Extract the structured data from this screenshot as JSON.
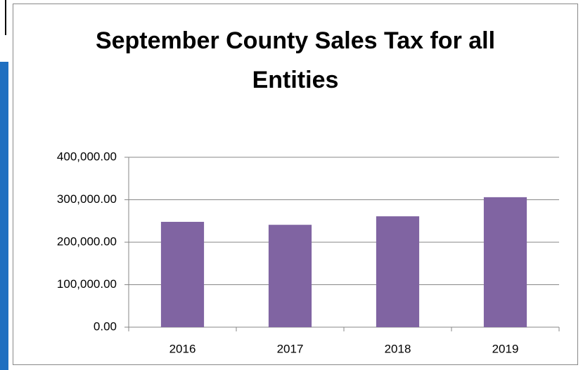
{
  "chart_data": {
    "type": "bar",
    "title": "September County Sales Tax for all Entities",
    "categories": [
      "2016",
      "2017",
      "2018",
      "2019"
    ],
    "values": [
      248000,
      241000,
      261000,
      306000
    ],
    "color": "#8064a2",
    "ylim": [
      0,
      400000
    ],
    "yticks": [
      {
        "value": 0,
        "label": "0.00"
      },
      {
        "value": 100000,
        "label": "100,000.00"
      },
      {
        "value": 200000,
        "label": "200,000.00"
      },
      {
        "value": 300000,
        "label": "300,000.00"
      },
      {
        "value": 400000,
        "label": "400,000.00"
      }
    ],
    "grid": true
  }
}
